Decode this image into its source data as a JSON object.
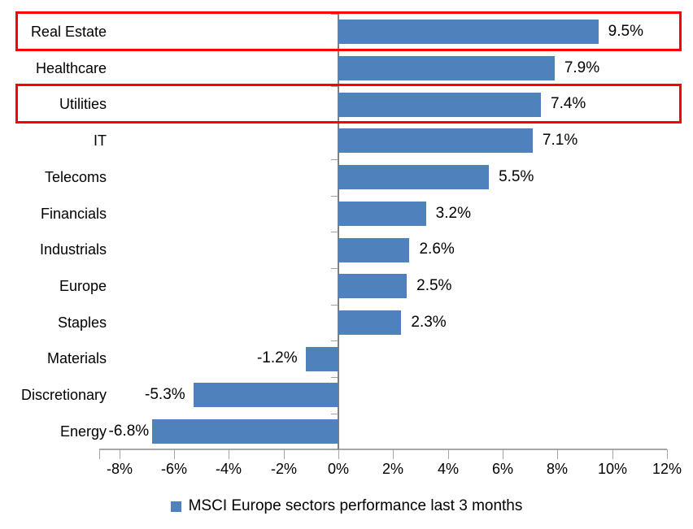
{
  "chart_data": {
    "type": "bar",
    "orientation": "horizontal",
    "categories": [
      "Real Estate",
      "Healthcare",
      "Utilities",
      "IT",
      "Telecoms",
      "Financials",
      "Industrials",
      "Europe",
      "Staples",
      "Materials",
      "Discretionary",
      "Energy"
    ],
    "values": [
      9.5,
      7.9,
      7.4,
      7.1,
      5.5,
      3.2,
      2.6,
      2.5,
      2.3,
      -1.2,
      -5.3,
      -6.8
    ],
    "data_labels": [
      "9.5%",
      "7.9%",
      "7.4%",
      "7.1%",
      "5.5%",
      "3.2%",
      "2.6%",
      "2.5%",
      "2.3%",
      "-1.2%",
      "-5.3%",
      "-6.8%"
    ],
    "x_axis": {
      "tick_labels": [
        "-8%",
        "-6%",
        "-4%",
        "-2%",
        "0%",
        "2%",
        "4%",
        "6%",
        "8%",
        "10%",
        "12%"
      ],
      "tick_values": [
        -8,
        -6,
        -4,
        -2,
        0,
        2,
        4,
        6,
        8,
        10,
        12
      ],
      "min_shown": -8.7,
      "max_shown": 12
    },
    "legend": {
      "label": "MSCI Europe sectors performance last 3 months",
      "position": "bottom"
    },
    "bar_color": "#4f81bd",
    "highlight_color": "#ff0000",
    "highlighted_categories": [
      "Real Estate",
      "Utilities"
    ],
    "grid": false,
    "title": ""
  }
}
